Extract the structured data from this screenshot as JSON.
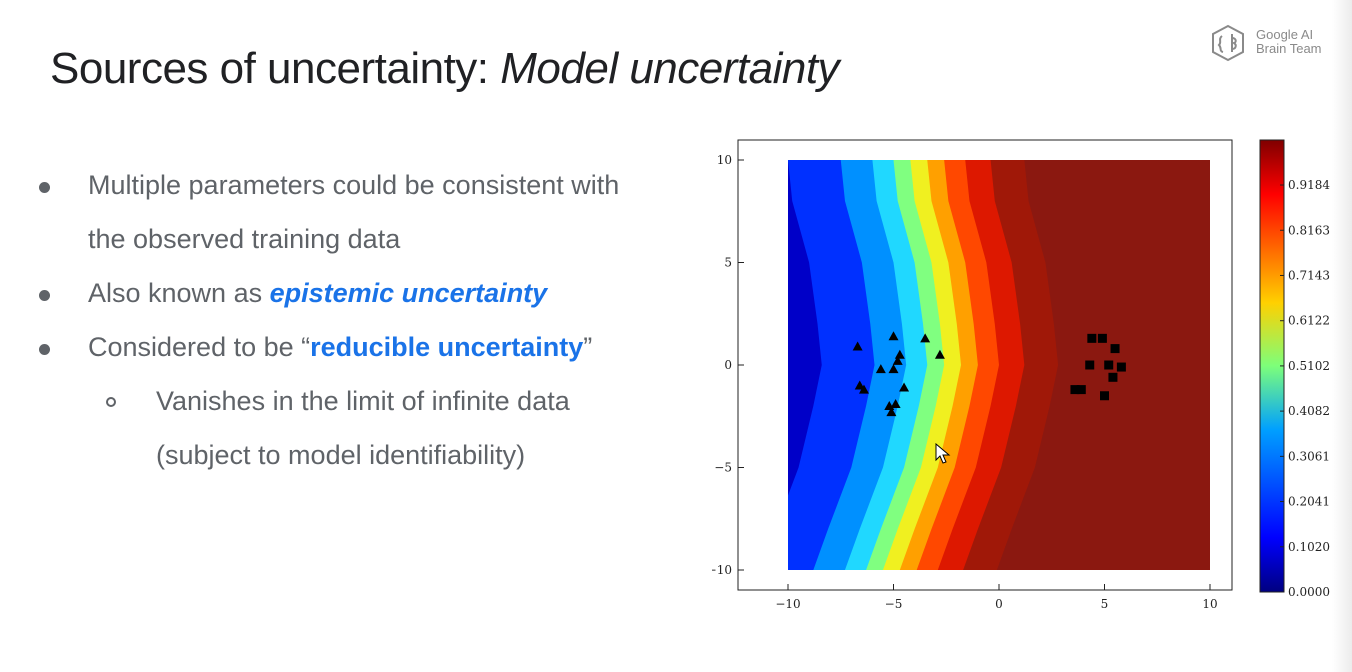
{
  "slide": {
    "title_plain": "Sources of uncertainty: ",
    "title_italic": "Model uncertainty",
    "logo": {
      "icon": "brain-hexagon-icon",
      "line1": "Google AI",
      "line2": "Brain Team"
    },
    "bullets": [
      {
        "lines": [
          "Multiple parameters could be consistent with",
          "the observed training data"
        ]
      },
      {
        "prefix": "Also known as ",
        "emphasis": "epistemic uncertainty",
        "suffix": ""
      },
      {
        "prefix": "Considered to be “",
        "emphasis": "reducible uncertainty",
        "suffix": "”"
      },
      {
        "sub": true,
        "lines": [
          "Vanishes in the limit of infinite data",
          "(subject to model identifiability)"
        ]
      }
    ],
    "colors": {
      "title": "#202124",
      "body": "#5f6368",
      "emphasis": "#1a73e8"
    }
  },
  "chart_data": {
    "type": "heatmap",
    "xlim": [
      -10,
      10
    ],
    "ylim": [
      -10,
      10
    ],
    "x_ticks": [
      -10,
      -5,
      0,
      5,
      10
    ],
    "y_ticks": [
      10,
      5,
      0,
      -5,
      -10
    ],
    "x_tick_labels": [
      "−10",
      "−5",
      "0",
      "5",
      "10"
    ],
    "y_tick_labels": [
      "10",
      "5",
      "0",
      "−5",
      "−10"
    ],
    "colorbar_ticks": [
      "0.0000",
      "0.1020",
      "0.2041",
      "0.3061",
      "0.4082",
      "0.5102",
      "0.6122",
      "0.7143",
      "0.8163",
      "0.9184"
    ],
    "colormap": "jet",
    "boundary": [
      [
        -3.0,
        10
      ],
      [
        -2.8,
        8
      ],
      [
        -2.0,
        5
      ],
      [
        -1.6,
        2
      ],
      [
        -1.4,
        0
      ],
      [
        -1.8,
        -2
      ],
      [
        -2.5,
        -5
      ],
      [
        -3.6,
        -8
      ],
      [
        -4.3,
        -10
      ]
    ],
    "triangles": [
      [
        -6.7,
        0.9
      ],
      [
        -5.0,
        1.4
      ],
      [
        -3.5,
        1.3
      ],
      [
        -2.8,
        0.5
      ],
      [
        -4.7,
        0.5
      ],
      [
        -5.6,
        -0.2
      ],
      [
        -5.0,
        -0.2
      ],
      [
        -6.6,
        -1.0
      ],
      [
        -6.4,
        -1.2
      ],
      [
        -4.5,
        -1.1
      ],
      [
        -5.2,
        -2.0
      ],
      [
        -4.9,
        -1.9
      ],
      [
        -5.1,
        -2.3
      ],
      [
        -4.8,
        0.2
      ]
    ],
    "squares": [
      [
        4.4,
        1.3
      ],
      [
        4.9,
        1.3
      ],
      [
        5.5,
        0.8
      ],
      [
        4.3,
        0.0
      ],
      [
        5.2,
        0.0
      ],
      [
        5.8,
        -0.1
      ],
      [
        3.6,
        -1.2
      ],
      [
        3.9,
        -1.2
      ],
      [
        5.0,
        -1.5
      ],
      [
        5.4,
        -0.6
      ]
    ]
  }
}
